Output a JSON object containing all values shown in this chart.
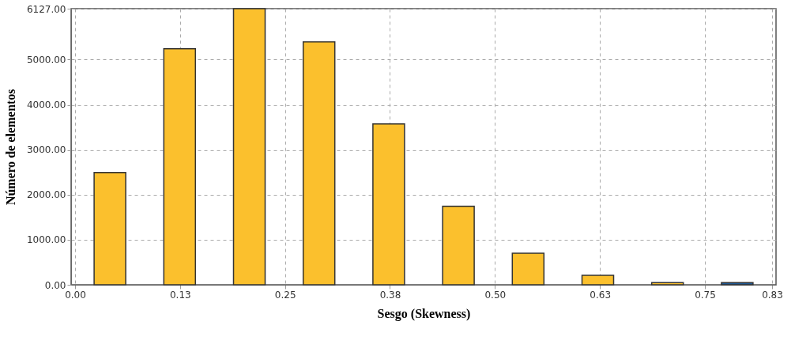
{
  "chart_data": {
    "type": "bar",
    "xlabel": "Sesgo (Skewness)",
    "ylabel": "Número de elementos",
    "x": [
      0.0415,
      0.1245,
      0.2075,
      0.2905,
      0.3735,
      0.4565,
      0.5395,
      0.6225,
      0.7055,
      0.7885
    ],
    "values": [
      2490,
      5240,
      6127,
      5390,
      3570,
      1740,
      700,
      210,
      50,
      50
    ],
    "colors": [
      "#fbc02d",
      "#fbc02d",
      "#fbc02d",
      "#fbc02d",
      "#fbc02d",
      "#fbc02d",
      "#fbc02d",
      "#fbc02d",
      "#fbc02d",
      "#1f5a96"
    ],
    "xlim": [
      0,
      0.83
    ],
    "xticks": [
      {
        "value": 0,
        "label": "0.00"
      },
      {
        "value": 0.125,
        "label": "0.13"
      },
      {
        "value": 0.25,
        "label": "0.25"
      },
      {
        "value": 0.375,
        "label": "0.38"
      },
      {
        "value": 0.5,
        "label": "0.50"
      },
      {
        "value": 0.625,
        "label": "0.63"
      },
      {
        "value": 0.75,
        "label": "0.75"
      },
      {
        "value": 0.83,
        "label": "0.83"
      }
    ],
    "ylim": [
      0,
      6127
    ],
    "yticks": [
      {
        "value": 0,
        "label": "0.00"
      },
      {
        "value": 1000,
        "label": "1000.00"
      },
      {
        "value": 2000,
        "label": "2000.00"
      },
      {
        "value": 3000,
        "label": "3000.00"
      },
      {
        "value": 4000,
        "label": "4000.00"
      },
      {
        "value": 5000,
        "label": "5000.00"
      },
      {
        "value": 6127,
        "label": "6127.00"
      }
    ],
    "grid": true
  }
}
